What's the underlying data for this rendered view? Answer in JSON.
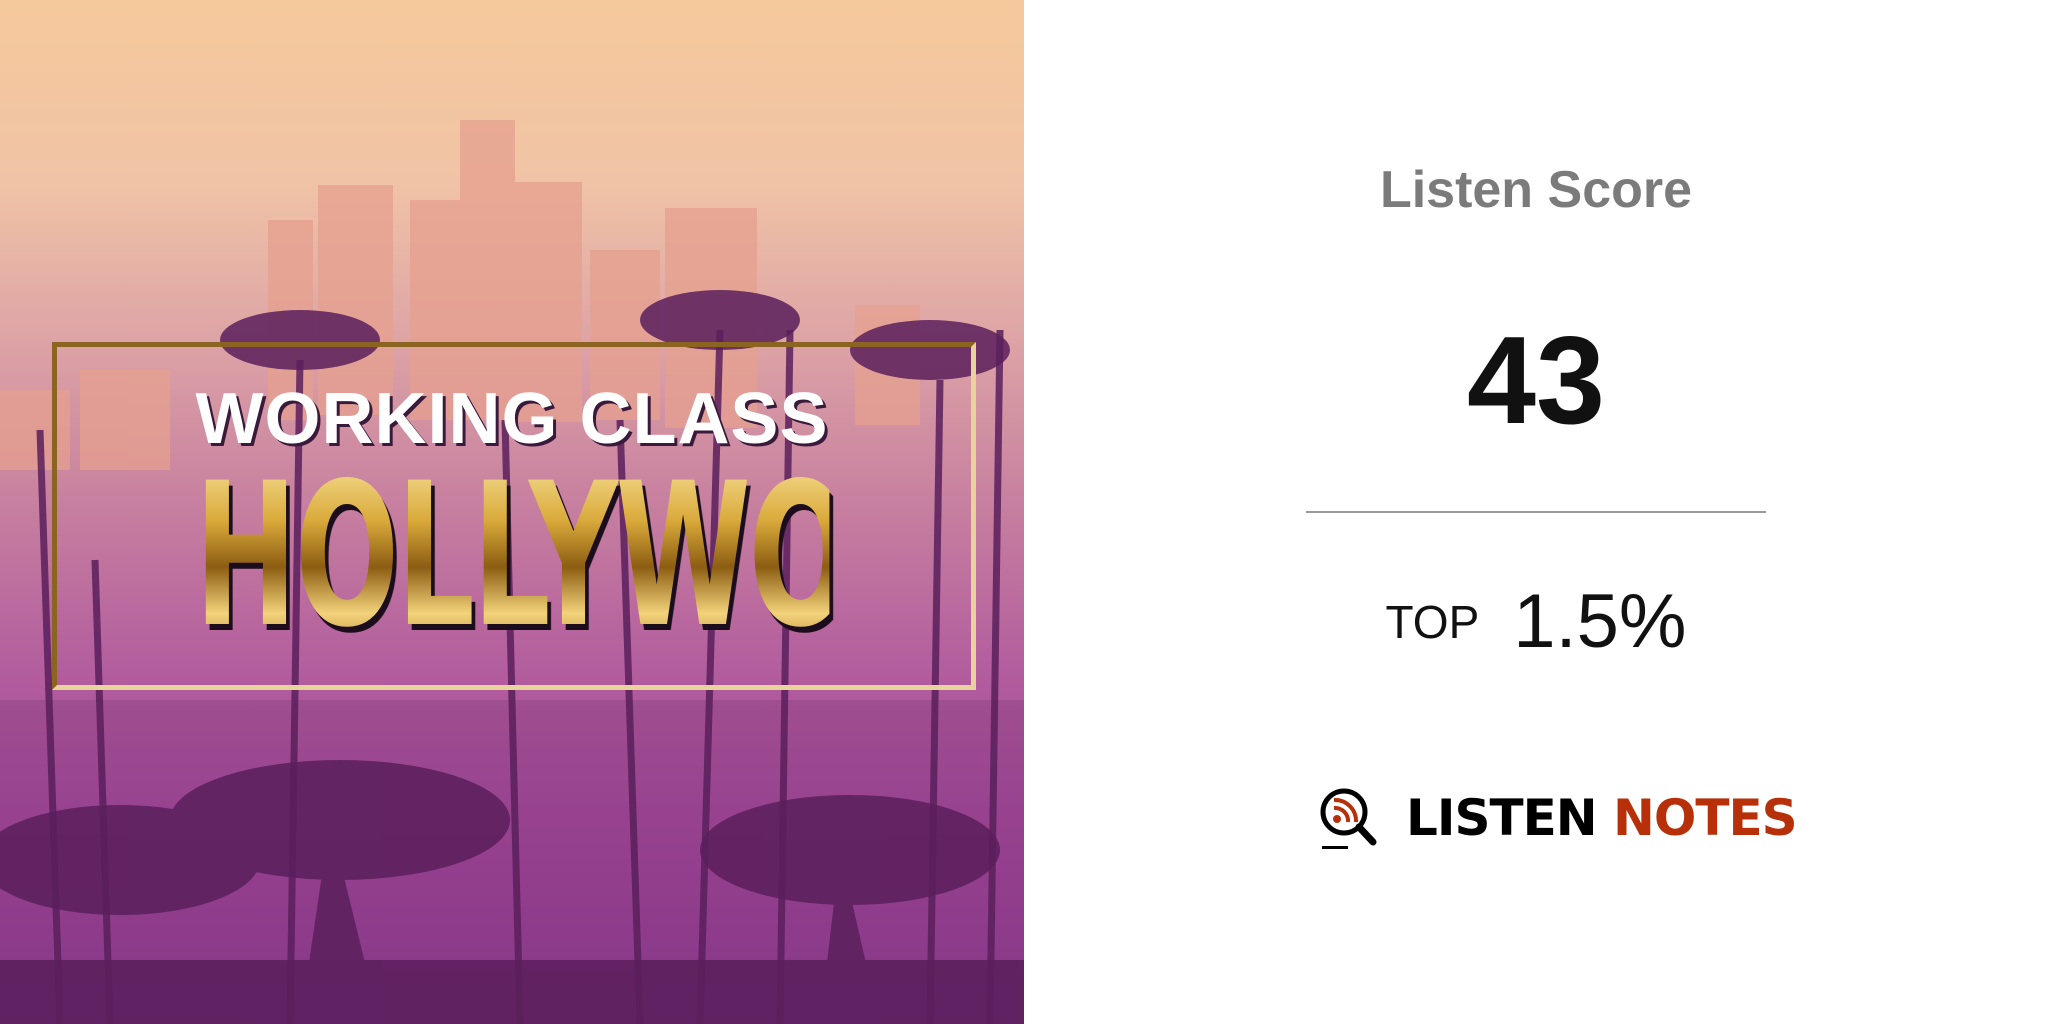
{
  "cover": {
    "subtitle": "WORKING CLASS",
    "title": "HOLLYWOOD"
  },
  "score": {
    "label": "Listen Score",
    "value": "43"
  },
  "rank": {
    "label": "TOP",
    "value": "1.5%"
  },
  "brand": {
    "name_part1": "LISTEN",
    "name_part2": "NOTES",
    "icon": "magnifier-podcast-icon",
    "accent_color": "#b7300a"
  }
}
